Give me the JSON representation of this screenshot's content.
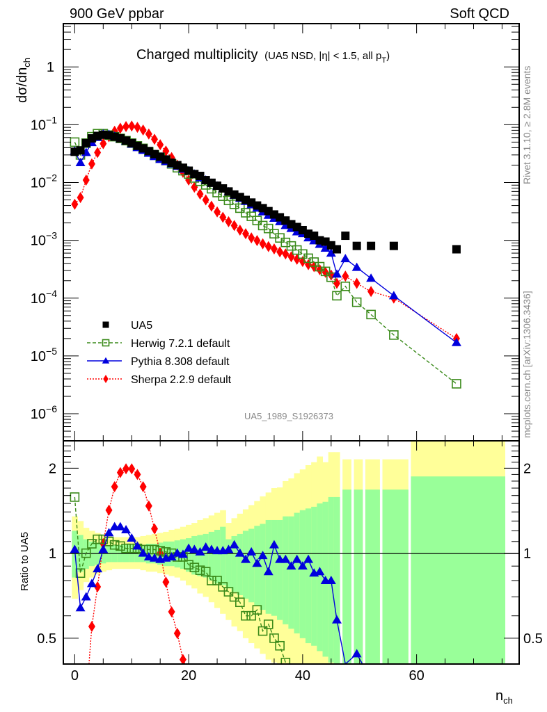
{
  "header": {
    "left_title": "900 GeV ppbar",
    "right_title": "Soft QCD"
  },
  "side_labels": {
    "rivet": "Rivet 3.1.10, ≥ 2.8M events",
    "mcplots": "mcplots.cern.ch [arXiv:1306.3436]"
  },
  "watermark": "UA5_1989_S1926373",
  "colors": {
    "data": "#000000",
    "herwig": "#3a8a1a",
    "pythia": "#0000dd",
    "sherpa": "#ff0000",
    "band_inner": "#99ff99",
    "band_outer": "#ffff99"
  },
  "chart_data": [
    {
      "type": "scatter",
      "panel": "main",
      "title": "Charged multiplicity",
      "subtitle": "(UA5 NSD, |η| < 1.5, all p_T)",
      "title_main": "Charged multiplicity",
      "subtitle_pre": "(UA5 NSD, |η| < 1.5, all p",
      "subtitle_sub": "T",
      "subtitle_post": ")",
      "xlabel": "n_ch",
      "xlabel_main": "n",
      "xlabel_sub": "ch",
      "ylabel": "dσ/dn_ch",
      "ylabel_main": "dσ/dn",
      "ylabel_sub": "ch",
      "yscale": "log",
      "xlim": [
        -2,
        78
      ],
      "ylim": [
        3.4e-07,
        5.6
      ],
      "x_ticks": [
        0,
        20,
        40,
        60
      ],
      "y_ticks": [
        {
          "value": 1,
          "label": "1",
          "exp": ""
        },
        {
          "value": 0.1,
          "label": "10",
          "exp": "−1"
        },
        {
          "value": 0.01,
          "label": "10",
          "exp": "−2"
        },
        {
          "value": 0.001,
          "label": "10",
          "exp": "−3"
        },
        {
          "value": 0.0001,
          "label": "10",
          "exp": "−4"
        },
        {
          "value": 1e-05,
          "label": "10",
          "exp": "−5"
        },
        {
          "value": 1e-06,
          "label": "10",
          "exp": "−6"
        }
      ],
      "legend_position": "lower-left",
      "series": [
        {
          "name": "UA5",
          "key": "data",
          "marker": "square-filled",
          "line": "none",
          "x": [
            0,
            1,
            2,
            3,
            4,
            5,
            6,
            7,
            8,
            9,
            10,
            11,
            12,
            13,
            14,
            15,
            16,
            17,
            18,
            19,
            20,
            21,
            22,
            23,
            24,
            25,
            26,
            27,
            28,
            29,
            30,
            31,
            32,
            33,
            34,
            35,
            36,
            37,
            38,
            39,
            40,
            41,
            42,
            43,
            44,
            45,
            46,
            47.5,
            49.5,
            52,
            56,
            67
          ],
          "y": [
            0.034,
            0.036,
            0.048,
            0.058,
            0.064,
            0.067,
            0.066,
            0.062,
            0.058,
            0.053,
            0.048,
            0.043,
            0.039,
            0.035,
            0.031,
            0.028,
            0.025,
            0.022,
            0.02,
            0.018,
            0.016,
            0.014,
            0.013,
            0.011,
            0.0099,
            0.0088,
            0.0079,
            0.007,
            0.0062,
            0.0056,
            0.005,
            0.0045,
            0.004,
            0.0036,
            0.0032,
            0.0028,
            0.0025,
            0.0022,
            0.0019,
            0.0017,
            0.0015,
            0.0013,
            0.0012,
            0.001,
            0.00095,
            0.00082,
            0.0007,
            0.0012,
            0.0008,
            0.0008,
            0.0008,
            0.0007
          ]
        },
        {
          "name": "Herwig 7.2.1 default",
          "key": "herwig",
          "marker": "square-open",
          "line": "dashed",
          "x": [
            0,
            1,
            2,
            3,
            4,
            5,
            6,
            7,
            8,
            9,
            10,
            11,
            12,
            13,
            14,
            15,
            16,
            17,
            18,
            19,
            20,
            21,
            22,
            23,
            24,
            25,
            26,
            27,
            28,
            29,
            30,
            31,
            32,
            33,
            34,
            35,
            36,
            37,
            38,
            39,
            40,
            41,
            42,
            43,
            44,
            45,
            46,
            47.5,
            49.5,
            52,
            56,
            67
          ],
          "y": [
            0.05,
            0.03,
            0.048,
            0.062,
            0.07,
            0.07,
            0.066,
            0.062,
            0.058,
            0.053,
            0.048,
            0.043,
            0.039,
            0.034,
            0.03,
            0.027,
            0.024,
            0.021,
            0.018,
            0.016,
            0.014,
            0.012,
            0.0105,
            0.0091,
            0.0078,
            0.0067,
            0.0058,
            0.0049,
            0.0042,
            0.0036,
            0.003,
            0.0026,
            0.0022,
            0.0018,
            0.0016,
            0.0013,
            0.0011,
            0.00092,
            0.0008,
            0.00068,
            0.00058,
            0.00049,
            0.00042,
            0.00035,
            0.00029,
            0.00023,
            0.00011,
            0.00016,
            8.5e-05,
            5.2e-05,
            2.3e-05,
            3.3e-06
          ]
        },
        {
          "name": "Pythia 8.308 default",
          "key": "pythia",
          "marker": "triangle-up",
          "line": "solid",
          "x": [
            0,
            1,
            2,
            3,
            4,
            5,
            6,
            7,
            8,
            9,
            10,
            11,
            12,
            13,
            14,
            15,
            16,
            17,
            18,
            19,
            20,
            21,
            22,
            23,
            24,
            25,
            26,
            27,
            28,
            29,
            30,
            31,
            32,
            33,
            34,
            35,
            36,
            37,
            38,
            39,
            40,
            41,
            42,
            43,
            44,
            45,
            46,
            47.5,
            49.5,
            52,
            56,
            67
          ],
          "y": [
            0.035,
            0.022,
            0.033,
            0.049,
            0.06,
            0.069,
            0.068,
            0.063,
            0.057,
            0.052,
            0.046,
            0.04,
            0.036,
            0.032,
            0.028,
            0.025,
            0.023,
            0.021,
            0.019,
            0.017,
            0.016,
            0.014,
            0.012,
            0.011,
            0.0097,
            0.0087,
            0.0077,
            0.0069,
            0.006,
            0.0053,
            0.0047,
            0.0041,
            0.0036,
            0.0031,
            0.0027,
            0.0024,
            0.0021,
            0.0018,
            0.0016,
            0.0014,
            0.0013,
            0.0011,
            0.00098,
            0.00085,
            0.00073,
            0.0006,
            0.00026,
            0.00048,
            0.00034,
            0.00022,
            0.00011,
            1.7e-05
          ]
        },
        {
          "name": "Sherpa 2.2.9 default",
          "key": "sherpa",
          "marker": "diamond",
          "line": "dotted",
          "x": [
            0,
            1,
            2,
            3,
            4,
            5,
            6,
            7,
            8,
            9,
            10,
            11,
            12,
            13,
            14,
            15,
            16,
            17,
            18,
            19,
            20,
            21,
            22,
            23,
            24,
            25,
            26,
            27,
            28,
            29,
            30,
            31,
            32,
            33,
            34,
            35,
            36,
            37,
            38,
            39,
            40,
            41,
            42,
            43,
            44,
            45,
            46,
            47.5,
            49.5,
            52,
            56,
            67
          ],
          "y": [
            0.0042,
            0.0055,
            0.011,
            0.021,
            0.033,
            0.047,
            0.062,
            0.077,
            0.087,
            0.093,
            0.095,
            0.09,
            0.081,
            0.069,
            0.056,
            0.045,
            0.035,
            0.027,
            0.02,
            0.015,
            0.011,
            0.0083,
            0.0063,
            0.005,
            0.0039,
            0.0031,
            0.0025,
            0.0021,
            0.0018,
            0.0015,
            0.0013,
            0.0011,
            0.00099,
            0.00087,
            0.00078,
            0.00071,
            0.00063,
            0.00058,
            0.00052,
            0.00047,
            0.00043,
            0.00038,
            0.00035,
            0.00031,
            0.00028,
            0.00025,
            0.00018,
            0.00024,
            0.00018,
            0.00013,
            0.0001,
            2e-05
          ]
        }
      ]
    },
    {
      "type": "scatter",
      "panel": "ratio",
      "ylabel": "Ratio to UA5",
      "yscale": "log",
      "xlim": [
        -2,
        78
      ],
      "ylim": [
        0.405,
        2.5
      ],
      "y_ticks": [
        {
          "value": 2,
          "label": "2"
        },
        {
          "value": 1,
          "label": "1"
        },
        {
          "value": 0.5,
          "label": "0.5"
        }
      ],
      "x_ticks": [
        {
          "value": 0,
          "label": "0"
        },
        {
          "value": 20,
          "label": "20"
        },
        {
          "value": 40,
          "label": "40"
        },
        {
          "value": 60,
          "label": "60"
        }
      ],
      "reference_line": 1,
      "bands": {
        "edges": [
          -0.5,
          0.5,
          1.5,
          2.5,
          3.5,
          4.5,
          5.5,
          6.5,
          7.5,
          8.5,
          9.5,
          10.5,
          11.5,
          12.5,
          13.5,
          14.5,
          15.5,
          16.5,
          17.5,
          18.5,
          19.5,
          20.5,
          21.5,
          22.5,
          23.5,
          24.5,
          25.5,
          26.5,
          27.5,
          28.5,
          29.5,
          30.5,
          31.5,
          32.5,
          33.5,
          34.5,
          35.5,
          36.5,
          37.5,
          38.5,
          39.5,
          40.5,
          41.5,
          42.5,
          43.5,
          44.5,
          45.5,
          46.5,
          47.0,
          48.5,
          49.0,
          50.5,
          51.0,
          53.5,
          54.0,
          58.5,
          59.0,
          75.5
        ],
        "inner_up": [
          1.2,
          1.16,
          1.12,
          1.1,
          1.09,
          1.08,
          1.07,
          1.07,
          1.07,
          1.07,
          1.07,
          1.07,
          1.07,
          1.08,
          1.08,
          1.09,
          1.1,
          1.1,
          1.11,
          1.12,
          1.13,
          1.15,
          1.16,
          1.17,
          1.19,
          1.21,
          1.24,
          1.12,
          1.15,
          1.17,
          1.2,
          1.22,
          1.25,
          1.27,
          1.31,
          1.31,
          1.31,
          1.35,
          1.35,
          1.39,
          1.42,
          1.44,
          1.46,
          1.5,
          1.52,
          1.58,
          1.58,
          null,
          1.68,
          null,
          1.68,
          null,
          1.68,
          null,
          1.68,
          null,
          1.87
        ],
        "inner_down": [
          0.82,
          0.86,
          0.88,
          0.9,
          0.91,
          0.92,
          0.93,
          0.93,
          0.93,
          0.93,
          0.93,
          0.93,
          0.93,
          0.92,
          0.92,
          0.91,
          0.9,
          0.9,
          0.89,
          0.88,
          0.86,
          0.84,
          0.83,
          0.82,
          0.8,
          0.78,
          0.77,
          0.75,
          0.73,
          0.71,
          0.69,
          0.67,
          0.65,
          0.63,
          0.61,
          0.6,
          0.58,
          0.56,
          0.54,
          0.52,
          0.5,
          0.48,
          0.47,
          0.45,
          0.43,
          0.41,
          0.405,
          null,
          0.405,
          null,
          0.405,
          null,
          0.405,
          null,
          0.405,
          null,
          0.405
        ],
        "outer_up": [
          1.35,
          1.3,
          1.23,
          1.2,
          1.18,
          1.16,
          1.15,
          1.14,
          1.14,
          1.14,
          1.14,
          1.14,
          1.15,
          1.16,
          1.17,
          1.18,
          1.19,
          1.21,
          1.22,
          1.24,
          1.26,
          1.28,
          1.31,
          1.33,
          1.36,
          1.39,
          1.42,
          1.28,
          1.33,
          1.38,
          1.43,
          1.48,
          1.53,
          1.59,
          1.64,
          1.7,
          1.71,
          1.8,
          1.84,
          1.92,
          1.98,
          2.05,
          2.1,
          2.2,
          2.1,
          2.28,
          2.28,
          null,
          2.15,
          null,
          2.15,
          null,
          2.15,
          null,
          2.15,
          null,
          2.5
        ],
        "outer_down": [
          0.69,
          0.74,
          0.79,
          0.82,
          0.84,
          0.86,
          0.87,
          0.88,
          0.88,
          0.88,
          0.88,
          0.88,
          0.87,
          0.86,
          0.86,
          0.85,
          0.84,
          0.83,
          0.82,
          0.8,
          0.77,
          0.75,
          0.72,
          0.7,
          0.67,
          0.64,
          0.61,
          0.58,
          0.55,
          0.53,
          0.5,
          0.48,
          0.46,
          0.44,
          0.42,
          0.41,
          0.405,
          0.405,
          0.405,
          0.405,
          0.405,
          0.405,
          0.405,
          0.405,
          0.405,
          0.405,
          0.405,
          null,
          0.405,
          null,
          0.405,
          null,
          0.405,
          null,
          0.405,
          null,
          0.405
        ]
      },
      "series": [
        {
          "name": "Herwig 7.2.1 default",
          "key": "herwig",
          "marker": "square-open",
          "line": "dashed",
          "x": [
            0,
            1,
            2,
            3,
            4,
            5,
            6,
            7,
            8,
            9,
            10,
            11,
            12,
            13,
            14,
            15,
            16,
            17,
            18,
            19,
            20,
            21,
            22,
            23,
            24,
            25,
            26,
            27,
            28,
            29,
            30,
            31,
            32,
            33,
            34,
            35,
            36,
            37
          ],
          "y": [
            1.58,
            0.85,
            1.0,
            1.08,
            1.12,
            1.12,
            1.1,
            1.07,
            1.06,
            1.04,
            1.04,
            1.04,
            1.03,
            1.03,
            1.03,
            1.02,
            1.01,
            1.0,
            0.97,
            0.97,
            0.91,
            0.89,
            0.87,
            0.86,
            0.8,
            0.8,
            0.76,
            0.73,
            0.7,
            0.67,
            0.6,
            0.6,
            0.63,
            0.53,
            0.56,
            0.5,
            0.47,
            0.41
          ]
        },
        {
          "name": "Pythia 8.308 default",
          "key": "pythia",
          "marker": "triangle-up",
          "line": "solid",
          "x": [
            0,
            1,
            2,
            3,
            4,
            5,
            6,
            7,
            8,
            9,
            10,
            11,
            12,
            13,
            14,
            15,
            16,
            17,
            18,
            19,
            20,
            21,
            22,
            23,
            24,
            25,
            26,
            27,
            28,
            29,
            30,
            31,
            32,
            33,
            34,
            35,
            36,
            37,
            38,
            39,
            40,
            41,
            42,
            43,
            44,
            45,
            46,
            47.5,
            49.5,
            50.5
          ],
          "y": [
            1.03,
            0.64,
            0.7,
            0.78,
            0.88,
            1.03,
            1.18,
            1.24,
            1.24,
            1.21,
            1.13,
            1.06,
            1.0,
            0.97,
            0.96,
            0.95,
            0.96,
            0.97,
            1.0,
            0.99,
            1.04,
            1.03,
            1.01,
            1.05,
            1.03,
            1.02,
            1.02,
            1.03,
            1.07,
            1.0,
            0.95,
            1.01,
            0.92,
            0.98,
            0.86,
            1.07,
            0.95,
            0.95,
            0.9,
            0.95,
            0.9,
            0.95,
            0.85,
            0.86,
            0.8,
            0.8,
            0.58,
            0.405,
            0.44,
            0.405
          ]
        },
        {
          "name": "Sherpa 2.2.9 default",
          "key": "sherpa",
          "marker": "diamond",
          "line": "dotted",
          "x": [
            2.5,
            3,
            4,
            5,
            6,
            7,
            8,
            9,
            10,
            11,
            12,
            13,
            14,
            15,
            16,
            17,
            18,
            19,
            20,
            21,
            21.5
          ],
          "y": [
            0.405,
            0.55,
            0.76,
            1.08,
            1.42,
            1.72,
            1.93,
            1.99,
            1.99,
            1.9,
            1.72,
            1.47,
            1.22,
            1.0,
            0.79,
            0.62,
            0.52,
            0.42,
            0.38,
            0.32,
            0.3
          ]
        }
      ]
    }
  ]
}
